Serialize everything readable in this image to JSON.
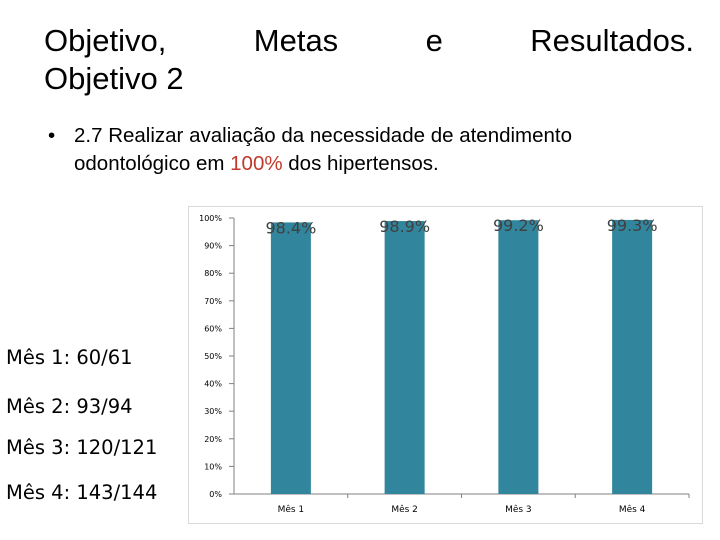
{
  "title": {
    "w1": "Objetivo,",
    "w2": "Metas",
    "w3": "e",
    "w4": "Resultados.",
    "line2": "Objetivo 2"
  },
  "bullet": {
    "symbol": "•",
    "text_before": "2.7 Realizar avaliação da necessidade de atendimento",
    "text_line2_start": "odontológico em ",
    "highlight": "100%",
    "text_after": " dos hipertensos."
  },
  "side_labels": [
    "Mês 1: 60/61",
    "Mês 2: 93/94",
    "Mês 3: 120/121",
    "Mês 4: 143/144"
  ],
  "colors": {
    "bar": "#31859c",
    "accent": "#c0392b"
  },
  "chart_data": {
    "type": "bar",
    "categories": [
      "Mês 1",
      "Mês 2",
      "Mês 3",
      "Mês 4"
    ],
    "values": [
      98.4,
      98.9,
      99.2,
      99.3
    ],
    "data_labels": [
      "98.4%",
      "98.9%",
      "99.2%",
      "99.3%"
    ],
    "ylim": [
      0,
      100
    ],
    "yticks": [
      "0%",
      "10%",
      "20%",
      "30%",
      "40%",
      "50%",
      "60%",
      "70%",
      "80%",
      "90%",
      "100%"
    ],
    "grid": false,
    "legend": "none"
  }
}
